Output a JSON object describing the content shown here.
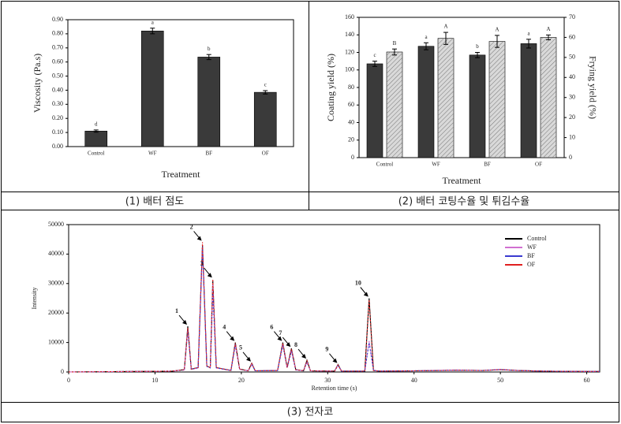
{
  "chart_data": [
    {
      "type": "bar",
      "caption": "(1) 배터 점도",
      "x_label": "Treatment",
      "y_label": "Viscosity (Pa.s)",
      "categories": [
        "Control",
        "WF",
        "BF",
        "OF"
      ],
      "series": [
        {
          "color": "#3a3a3a",
          "values": [
            0.11,
            0.82,
            0.635,
            0.385
          ],
          "errors": [
            0.008,
            0.02,
            0.018,
            0.012
          ],
          "letters": [
            "d",
            "a",
            "b",
            "c"
          ]
        }
      ],
      "ylim": [
        0,
        0.9
      ],
      "yticks": [
        {
          "value": 0,
          "label": "0.00"
        },
        {
          "value": 0.1,
          "label": "0.10"
        },
        {
          "value": 0.2,
          "label": "0.20"
        },
        {
          "value": 0.3,
          "label": "0.30"
        },
        {
          "value": 0.4,
          "label": "0.40"
        },
        {
          "value": 0.5,
          "label": "0.50"
        },
        {
          "value": 0.6,
          "label": "0.60"
        },
        {
          "value": 0.7,
          "label": "0.70"
        },
        {
          "value": 0.8,
          "label": "0.80"
        },
        {
          "value": 0.9,
          "label": "0.90"
        }
      ]
    },
    {
      "type": "bar",
      "caption": "(2) 배터 코팅수율 및 튀김수율",
      "x_label": "Treatment",
      "y_label": "Coating yield (%)",
      "y2_label": "Frying yield (%)",
      "categories": [
        "Control",
        "WF",
        "BF",
        "OF"
      ],
      "series": [
        {
          "color": "#3a3a3a",
          "values": [
            107,
            127,
            117,
            130
          ],
          "errors": [
            3,
            4,
            3,
            5
          ],
          "letters": [
            "c",
            "a",
            "b",
            "a"
          ]
        },
        {
          "color": "#d9d9d9",
          "hatch": true,
          "axis": "y2",
          "values": [
            52.7,
            59.5,
            58,
            60
          ],
          "errors": [
            1.5,
            3,
            3,
            1.2
          ],
          "letters": [
            "B",
            "A",
            "A",
            "A"
          ]
        }
      ],
      "ylim": [
        0,
        160
      ],
      "yticks": [
        0,
        20,
        40,
        60,
        80,
        100,
        120,
        140,
        160
      ],
      "y2lim": [
        0,
        70
      ],
      "y2ticks": [
        0,
        10,
        20,
        30,
        40,
        50,
        60,
        70
      ]
    },
    {
      "type": "line",
      "caption": "(3) 전자코",
      "x_label": "Retention time (s)",
      "y_label": "Intensity",
      "legend": "upper right",
      "x": [
        0,
        12,
        13.4,
        13.8,
        14.2,
        15,
        15.5,
        16,
        16.4,
        16.7,
        17.1,
        18.8,
        19.3,
        19.8,
        20.8,
        21.2,
        21.6,
        24.2,
        24.8,
        25.3,
        25.8,
        26.3,
        27.2,
        27.6,
        28,
        30.8,
        31.2,
        31.6,
        34.3,
        34.8,
        35.3,
        36,
        40,
        45,
        48,
        50,
        52,
        55,
        60,
        61.5
      ],
      "series": [
        {
          "name": "Control",
          "color": "#000000",
          "values": [
            0,
            300,
            800,
            15500,
            1000,
            1500,
            43000,
            2000,
            1500,
            31000,
            1500,
            500,
            10000,
            1000,
            400,
            3000,
            400,
            500,
            10000,
            1500,
            8000,
            800,
            400,
            4000,
            400,
            300,
            2500,
            300,
            300,
            25000,
            500,
            300,
            400,
            600,
            500,
            800,
            500,
            300,
            200,
            200
          ]
        },
        {
          "name": "WF",
          "color": "#d070d0",
          "values": [
            0,
            300,
            700,
            14500,
            900,
            1400,
            42000,
            1900,
            1400,
            30000,
            1400,
            500,
            9500,
            900,
            400,
            2800,
            400,
            500,
            9500,
            1400,
            7500,
            700,
            400,
            3500,
            400,
            300,
            2300,
            300,
            300,
            10500,
            500,
            300,
            400,
            700,
            500,
            900,
            500,
            300,
            200,
            200
          ]
        },
        {
          "name": "BF",
          "color": "#3a3ad0",
          "values": [
            0,
            300,
            700,
            14000,
            900,
            1400,
            42500,
            1900,
            1400,
            27000,
            1400,
            500,
            9000,
            900,
            400,
            2600,
            400,
            500,
            9000,
            1400,
            7000,
            700,
            400,
            3300,
            400,
            300,
            2200,
            300,
            300,
            10000,
            500,
            300,
            400,
            600,
            500,
            800,
            500,
            300,
            200,
            200
          ]
        },
        {
          "name": "OF",
          "color": "#e02020",
          "values": [
            0,
            300,
            800,
            15000,
            1000,
            1500,
            44000,
            2000,
            1500,
            31500,
            1500,
            500,
            9800,
            1000,
            400,
            2900,
            400,
            500,
            9800,
            1500,
            7800,
            800,
            400,
            3800,
            400,
            300,
            2400,
            300,
            300,
            24500,
            500,
            300,
            400,
            600,
            500,
            800,
            500,
            300,
            200,
            200
          ]
        }
      ],
      "annotations": [
        "1",
        "2",
        "3",
        "4",
        "5",
        "6",
        "7",
        "8",
        "9",
        "10"
      ],
      "xlim": [
        0,
        61.5
      ],
      "xticks": [
        0,
        10,
        20,
        30,
        40,
        50,
        60
      ],
      "ylim": [
        0,
        50000
      ],
      "yticks": [
        0,
        10000,
        20000,
        30000,
        40000,
        50000
      ]
    }
  ]
}
